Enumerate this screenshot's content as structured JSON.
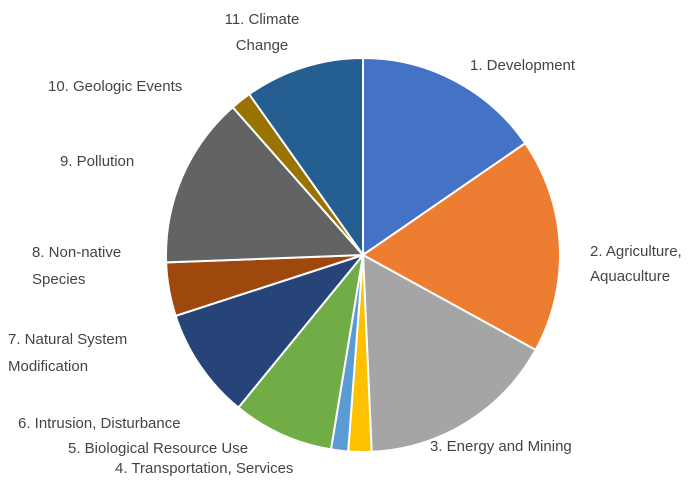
{
  "chart_data": {
    "type": "pie",
    "title": "",
    "start_angle_deg": 0,
    "direction": "clockwise",
    "slices": [
      {
        "label": [
          "1. Development"
        ],
        "value": 15.4,
        "color": "#4472C4"
      },
      {
        "label": [
          "2. Agriculture,",
          "Aquaculture"
        ],
        "value": 17.6,
        "color": "#ED7D31"
      },
      {
        "label": [
          "3. Energy and Mining"
        ],
        "value": 16.3,
        "color": "#A5A5A5"
      },
      {
        "label": [
          "4. Transportation, Services"
        ],
        "value": 1.9,
        "color": "#FFC000"
      },
      {
        "label": [
          "5. Biological Resource Use"
        ],
        "value": 1.4,
        "color": "#5B9BD5"
      },
      {
        "label": [
          "6. Intrusion, Disturbance"
        ],
        "value": 8.3,
        "color": "#70AD47"
      },
      {
        "label": [
          "7. Natural System",
          "Modification"
        ],
        "value": 9.1,
        "color": "#264478"
      },
      {
        "label": [
          "8. Non-native",
          "Species"
        ],
        "value": 4.4,
        "color": "#9E480E"
      },
      {
        "label": [
          "9. Pollution"
        ],
        "value": 14.1,
        "color": "#636363"
      },
      {
        "label": [
          "10. Geologic Events"
        ],
        "value": 1.7,
        "color": "#997300"
      },
      {
        "label": [
          "11. Climate",
          "Change"
        ],
        "value": 9.8,
        "color": "#255E91"
      }
    ]
  }
}
